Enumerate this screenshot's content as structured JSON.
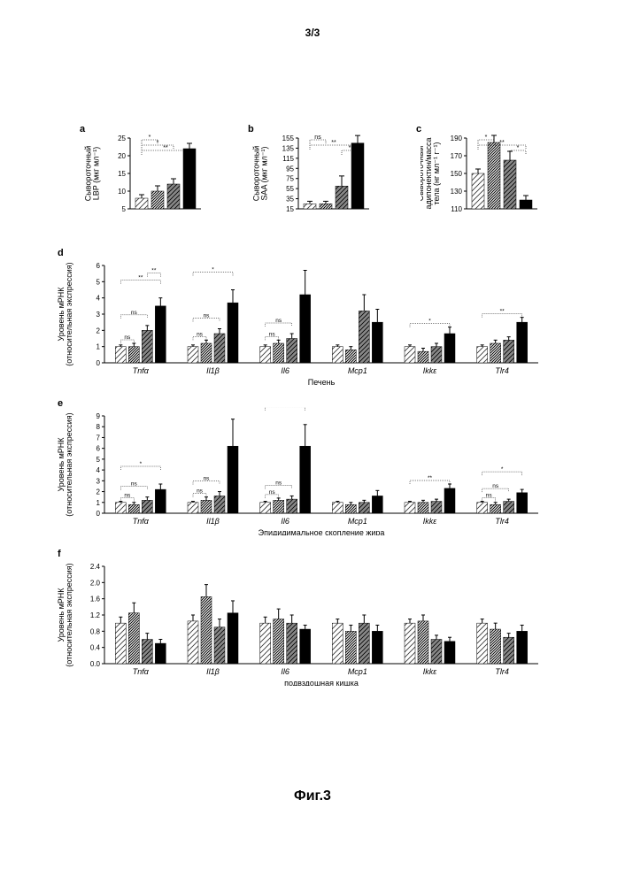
{
  "page_header": "3/3",
  "figure_label": "Фиг.3",
  "colors": {
    "bg": "#ffffff",
    "black": "#000000",
    "gray": "#666666",
    "lightgray": "#999999"
  },
  "fonts": {
    "axis": 9,
    "panel": 11,
    "tick": 8,
    "gene": 9
  },
  "panels": {
    "a": {
      "label": "a",
      "ylabel_line1": "Сывороточный",
      "ylabel_line2": "LBP (мкг мл⁻¹)",
      "ymin": 5,
      "ymax": 25,
      "ystep": 5,
      "values": [
        8,
        10,
        12,
        22
      ],
      "errors": [
        1,
        1.5,
        1.5,
        1.5
      ],
      "sig": [
        [
          "*",
          0,
          1
        ],
        [
          "*",
          0,
          2
        ],
        [
          "**",
          0,
          3
        ]
      ]
    },
    "b": {
      "label": "b",
      "ylabel_line1": "Сывороточный",
      "ylabel_line2": "SAA (мкг мл⁻¹)",
      "ymin": 15,
      "ymax": 155,
      "ystep": 20,
      "values": [
        25,
        25,
        60,
        145
      ],
      "errors": [
        5,
        5,
        20,
        15
      ],
      "sig": [
        [
          "ns",
          0,
          1
        ],
        [
          "**",
          0,
          3
        ],
        [
          "*",
          2,
          3
        ]
      ]
    },
    "c": {
      "label": "c",
      "ylabel_line1": "Сывороточный",
      "ylabel_line2": "адипонектин/масса",
      "ylabel_line3": "тела (нг мл⁻¹ г⁻¹)",
      "ymin": 110,
      "ymax": 190,
      "ystep": 20,
      "values": [
        150,
        185,
        165,
        120
      ],
      "errors": [
        5,
        8,
        10,
        5
      ],
      "sig": [
        [
          "*",
          0,
          1
        ],
        [
          "**",
          0,
          3
        ],
        [
          "*",
          2,
          3
        ]
      ]
    },
    "d": {
      "label": "d",
      "ylabel_line1": "Уровень мРНК",
      "ylabel_line2": "(относительная экспрессия)",
      "title": "Печень",
      "ymin": 0,
      "ymax": 6,
      "ystep": 1,
      "genes": [
        "Tnfα",
        "Il1β",
        "Il6",
        "Mcp1",
        "Ikkε",
        "Tlr4"
      ],
      "values": [
        [
          1,
          1,
          2,
          3.5
        ],
        [
          1,
          1.2,
          1.8,
          3.7
        ],
        [
          1,
          1.2,
          1.5,
          4.2
        ],
        [
          1,
          0.8,
          3.2,
          2.5
        ],
        [
          1,
          0.7,
          1,
          1.8
        ],
        [
          1,
          1.2,
          1.4,
          2.5
        ]
      ],
      "errors": [
        [
          0.1,
          0.2,
          0.3,
          0.5
        ],
        [
          0.1,
          0.2,
          0.3,
          0.8
        ],
        [
          0.1,
          0.2,
          0.3,
          1.5
        ],
        [
          0.1,
          0.2,
          1,
          0.8
        ],
        [
          0.1,
          0.2,
          0.2,
          0.4
        ],
        [
          0.1,
          0.2,
          0.2,
          0.3
        ]
      ],
      "sig": [
        [
          [
            "ns",
            0,
            1
          ],
          [
            "ns",
            0,
            2
          ],
          [
            "**",
            0,
            3
          ],
          [
            "**",
            2,
            3
          ]
        ],
        [
          [
            "ns",
            0,
            1
          ],
          [
            "ns",
            0,
            2
          ],
          [
            "*",
            0,
            3
          ]
        ],
        [
          [
            "ns",
            0,
            1
          ],
          [
            "ns",
            0,
            2
          ],
          [
            "*",
            0,
            3
          ]
        ],
        [],
        [
          [
            "*",
            0,
            3
          ]
        ],
        [
          [
            "**",
            0,
            3
          ]
        ]
      ]
    },
    "e": {
      "label": "e",
      "ylabel_line1": "Уровень мРНК",
      "ylabel_line2": "(относительная экспрессия)",
      "title": "Эпидидимальное скопление жира",
      "ymin": 0,
      "ymax": 9,
      "ystep": 1,
      "genes": [
        "Tnfα",
        "Il1β",
        "Il6",
        "Mcp1",
        "Ikkε",
        "Tlr4"
      ],
      "values": [
        [
          1,
          0.8,
          1.2,
          2.2
        ],
        [
          1,
          1.2,
          1.6,
          6.2
        ],
        [
          1,
          1.2,
          1.3,
          6.2
        ],
        [
          1,
          0.8,
          1,
          1.6
        ],
        [
          1,
          1,
          1.1,
          2.3
        ],
        [
          1,
          0.8,
          1.1,
          1.9
        ]
      ],
      "errors": [
        [
          0.1,
          0.2,
          0.3,
          0.5
        ],
        [
          0.1,
          0.3,
          0.4,
          2.5
        ],
        [
          0.1,
          0.2,
          0.3,
          2
        ],
        [
          0.1,
          0.2,
          0.2,
          0.5
        ],
        [
          0.1,
          0.2,
          0.2,
          0.4
        ],
        [
          0.1,
          0.2,
          0.2,
          0.3
        ]
      ],
      "sig": [
        [
          [
            "ns",
            0,
            1
          ],
          [
            "ns",
            0,
            2
          ],
          [
            "*",
            0,
            3
          ]
        ],
        [
          [
            "ns",
            0,
            1
          ],
          [
            "ns",
            0,
            2
          ],
          [
            "*",
            0,
            3
          ]
        ],
        [
          [
            "ns",
            0,
            1
          ],
          [
            "ns",
            0,
            2
          ],
          [
            "**",
            0,
            3
          ]
        ],
        [],
        [
          [
            "**",
            0,
            3
          ]
        ],
        [
          [
            "ns",
            0,
            1
          ],
          [
            "ns",
            0,
            2
          ],
          [
            "*",
            0,
            3
          ]
        ]
      ]
    },
    "f": {
      "label": "f",
      "ylabel_line1": "Уровень мРНК",
      "ylabel_line2": "(относительная экспрессия)",
      "title": "подвздошная кишка",
      "ymin": 0,
      "ymax": 2.4,
      "ystep": 0.4,
      "genes": [
        "Tnfα",
        "Il1β",
        "Il6",
        "Mcp1",
        "Ikkε",
        "Tlr4"
      ],
      "values": [
        [
          1,
          1.25,
          0.6,
          0.5
        ],
        [
          1.05,
          1.65,
          0.9,
          1.25
        ],
        [
          1,
          1.1,
          1,
          0.85
        ],
        [
          1,
          0.8,
          1,
          0.8
        ],
        [
          1,
          1.05,
          0.6,
          0.55
        ],
        [
          1,
          0.85,
          0.65,
          0.8
        ]
      ],
      "errors": [
        [
          0.15,
          0.25,
          0.15,
          0.1
        ],
        [
          0.15,
          0.3,
          0.2,
          0.3
        ],
        [
          0.15,
          0.25,
          0.2,
          0.1
        ],
        [
          0.1,
          0.15,
          0.2,
          0.15
        ],
        [
          0.1,
          0.15,
          0.1,
          0.1
        ],
        [
          0.1,
          0.15,
          0.1,
          0.15
        ]
      ],
      "sig": [
        [],
        [],
        [],
        [],
        [],
        []
      ]
    }
  },
  "bar_patterns": [
    "hatch-ne",
    "hatch-dense",
    "hatch-ne-dark",
    "solid-black"
  ]
}
